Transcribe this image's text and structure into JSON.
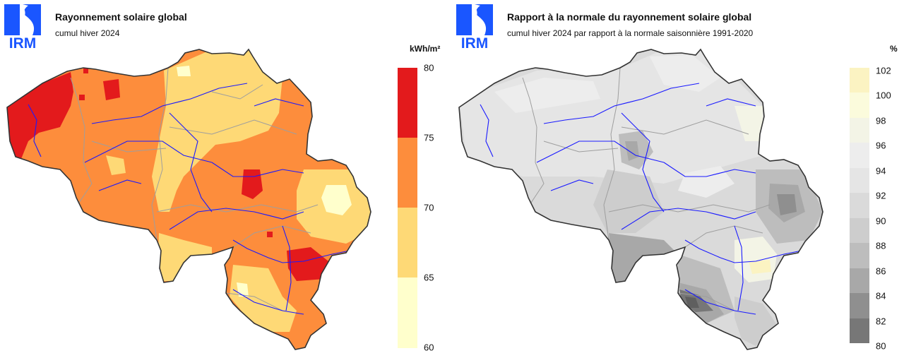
{
  "left": {
    "logo_text": "IRM",
    "title": "Rayonnement solaire global",
    "subtitle": "cumul hiver 2024",
    "unit": "kWh/m²",
    "legend": {
      "ticks": [
        "80",
        "75",
        "70",
        "65",
        "60"
      ],
      "colors": [
        "#e31a1c",
        "#fd8d3c",
        "#fed976",
        "#ffffcc"
      ]
    }
  },
  "right": {
    "logo_text": "IRM",
    "title": "Rapport à la normale du rayonnement solaire global",
    "subtitle": "cumul hiver 2024 par rapport à la normale saisonnière 1991-2020",
    "unit": "%",
    "legend": {
      "ticks": [
        "102",
        "100",
        "98",
        "96",
        "94",
        "92",
        "90",
        "88",
        "86",
        "84",
        "82",
        "80"
      ],
      "colors": [
        "#fbf3c2",
        "#fbfbdc",
        "#f3f4e6",
        "#ededed",
        "#e5e5e5",
        "#dadada",
        "#cdcdcd",
        "#bdbdbd",
        "#a8a8a8",
        "#8f8f8f",
        "#777777"
      ]
    }
  }
}
